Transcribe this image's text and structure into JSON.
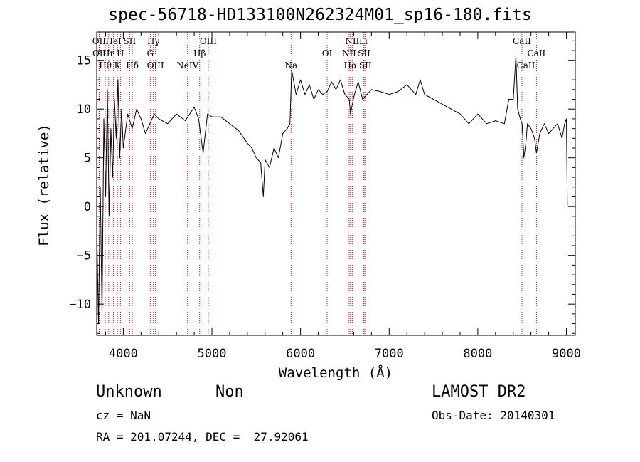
{
  "header": {
    "title": "spec-56718-HD133100N262324M01_sp16-180.fits"
  },
  "info": {
    "class": "Unknown",
    "subclass": "Non",
    "survey": "LAMOST DR2",
    "cz": "cz = NaN",
    "obs_date": "Obs-Date: 20140301",
    "radec": "RA = 201.07244, DEC =  27.92061"
  },
  "colors": {
    "spectrum": "#000000",
    "line_markers": "#b22222",
    "axes": "#000000"
  },
  "chart_data": {
    "type": "line",
    "xlabel": "Wavelength (Å)",
    "ylabel": "Flux (relative)",
    "xlim": [
      3700,
      9100
    ],
    "ylim": [
      -13.2,
      17.9
    ],
    "xticks": [
      4000,
      5000,
      6000,
      7000,
      8000,
      9000
    ],
    "yticks": [
      -10,
      -5,
      0,
      5,
      10,
      15
    ],
    "grid": false,
    "series": [
      {
        "values_description": "",
        "x": [
          3700,
          3720,
          3740,
          3760,
          3780,
          3800,
          3820,
          3840,
          3860,
          3880,
          3900,
          3920,
          3940,
          3960,
          3980,
          4000,
          4050,
          4100,
          4150,
          4200,
          4250,
          4300,
          4350,
          4400,
          4500,
          4600,
          4700,
          4800,
          4850,
          4900,
          4950,
          5000,
          5100,
          5200,
          5300,
          5400,
          5450,
          5500,
          5550,
          5580,
          5600,
          5650,
          5700,
          5750,
          5800,
          5850,
          5880,
          5900,
          5920,
          5950,
          6000,
          6050,
          6100,
          6150,
          6200,
          6250,
          6300,
          6350,
          6400,
          6450,
          6500,
          6550,
          6563,
          6600,
          6650,
          6700,
          6750,
          6800,
          6900,
          7000,
          7100,
          7200,
          7300,
          7350,
          7400,
          7500,
          7600,
          7700,
          7800,
          7900,
          8000,
          8100,
          8200,
          8300,
          8350,
          8400,
          8430,
          8450,
          8480,
          8500,
          8520,
          8542,
          8560,
          8600,
          8640,
          8662,
          8700,
          8750,
          8800,
          8850,
          8900,
          8950,
          8980,
          9000,
          9010
        ],
        "y": [
          -2,
          -12,
          2,
          -11,
          9,
          1,
          12,
          -1,
          8,
          3,
          11,
          7,
          13,
          5,
          10,
          6,
          9.5,
          8,
          10,
          9,
          7.5,
          8.5,
          9.5,
          9,
          8.5,
          9.5,
          8.8,
          10.2,
          9,
          5.5,
          9.5,
          9.2,
          9.2,
          8.5,
          7.8,
          6.5,
          6,
          5,
          4.5,
          1,
          4.8,
          4,
          6,
          5,
          7.5,
          8,
          8.5,
          14,
          13,
          11.5,
          13,
          11.5,
          12.5,
          11,
          12,
          11.5,
          11.8,
          12.8,
          12,
          13,
          11.5,
          11,
          9.5,
          11.2,
          12.8,
          11,
          11.5,
          12,
          11.8,
          11.5,
          11.8,
          12.5,
          11.5,
          13,
          11.5,
          11,
          10.5,
          10,
          9.5,
          8.5,
          9.5,
          8.5,
          8.8,
          8.5,
          11,
          11,
          15.5,
          10,
          9,
          8.5,
          5,
          6.5,
          8.5,
          8,
          7,
          5.5,
          7.5,
          8.5,
          7.5,
          8,
          8.5,
          7,
          8.5,
          9,
          0
        ]
      }
    ],
    "line_markers": [
      {
        "name": "OII",
        "x": 3727,
        "row": 0
      },
      {
        "name": "HeI",
        "x": 3889,
        "row": 0
      },
      {
        "name": "SII",
        "x": 4072,
        "row": 0
      },
      {
        "name": "Hγ",
        "x": 4340,
        "row": 0
      },
      {
        "name": "OIII",
        "x": 4959,
        "row": 0
      },
      {
        "name": "NII",
        "x": 6583,
        "row": 0
      },
      {
        "name": "Li",
        "x": 6708,
        "row": 0
      },
      {
        "name": "CaII",
        "x": 8498,
        "row": 0
      },
      {
        "name": "OII",
        "x": 3729,
        "row": 1
      },
      {
        "name": "Hη",
        "x": 3835,
        "row": 1
      },
      {
        "name": "H",
        "x": 3968,
        "row": 1
      },
      {
        "name": "G",
        "x": 4304,
        "row": 1
      },
      {
        "name": "Hβ",
        "x": 4861,
        "row": 1
      },
      {
        "name": "OI",
        "x": 6300,
        "row": 1
      },
      {
        "name": "NII",
        "x": 6548,
        "row": 1
      },
      {
        "name": "SII",
        "x": 6717,
        "row": 1
      },
      {
        "name": "CaII",
        "x": 8662,
        "row": 1
      },
      {
        "name": "Hθ",
        "x": 3797,
        "row": 2
      },
      {
        "name": "K",
        "x": 3934,
        "row": 2
      },
      {
        "name": "Hδ",
        "x": 4102,
        "row": 2
      },
      {
        "name": "OIII",
        "x": 4363,
        "row": 2
      },
      {
        "name": "NeIV",
        "x": 4725,
        "row": 2
      },
      {
        "name": "Na",
        "x": 5893,
        "row": 2
      },
      {
        "name": "Hα",
        "x": 6563,
        "row": 2
      },
      {
        "name": "SII",
        "x": 6731,
        "row": 2
      },
      {
        "name": "CaII",
        "x": 8542,
        "row": 2
      }
    ]
  }
}
